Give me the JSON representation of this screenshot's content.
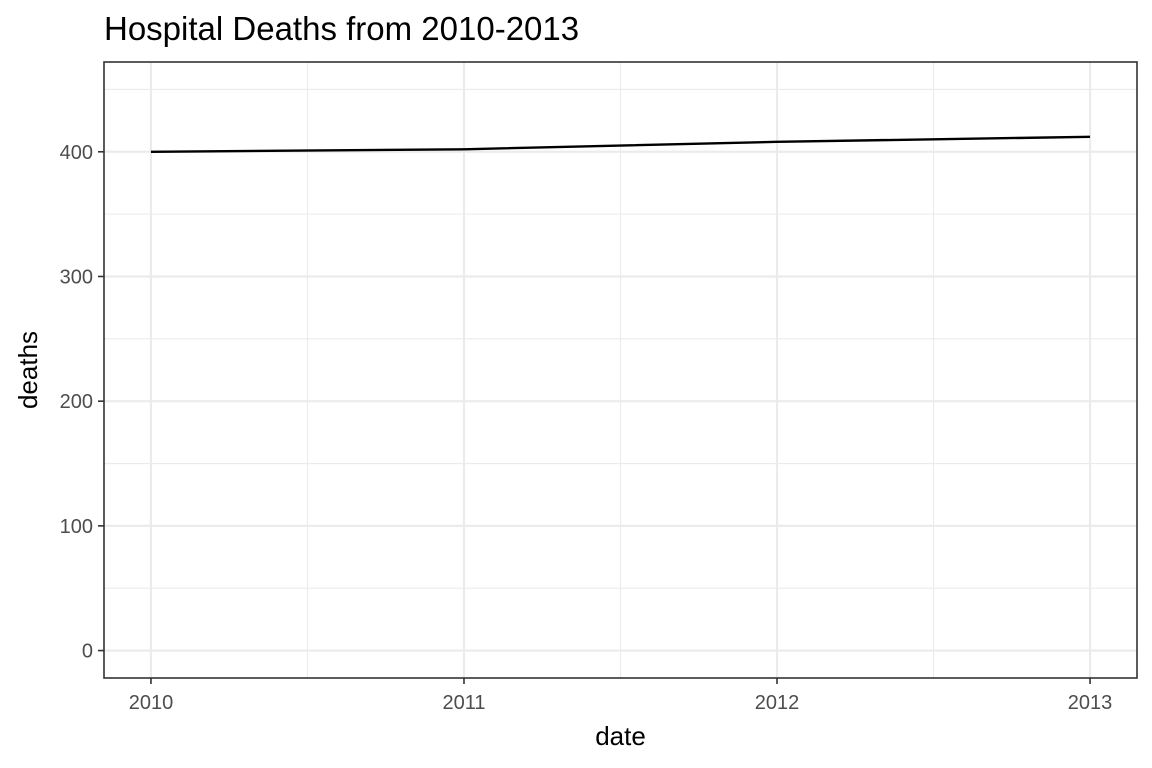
{
  "chart_data": {
    "type": "line",
    "title": "Hospital Deaths from 2010-2013",
    "xlabel": "date",
    "ylabel": "deaths",
    "x": [
      "2010",
      "2011",
      "2012",
      "2013"
    ],
    "series": [
      {
        "values": [
          400,
          402,
          408,
          412
        ]
      }
    ],
    "xticks": [
      "2010",
      "2011",
      "2012",
      "2013"
    ],
    "yticks": [
      0,
      100,
      200,
      300,
      400
    ],
    "xlim": [
      2009.85,
      2013.15
    ],
    "ylim": [
      -22,
      472
    ],
    "grid": true,
    "legend": "none",
    "colors": {
      "line": "#000000",
      "grid": "#ebebeb",
      "panel_border": "#333333",
      "tick_text": "#4d4d4d"
    }
  }
}
